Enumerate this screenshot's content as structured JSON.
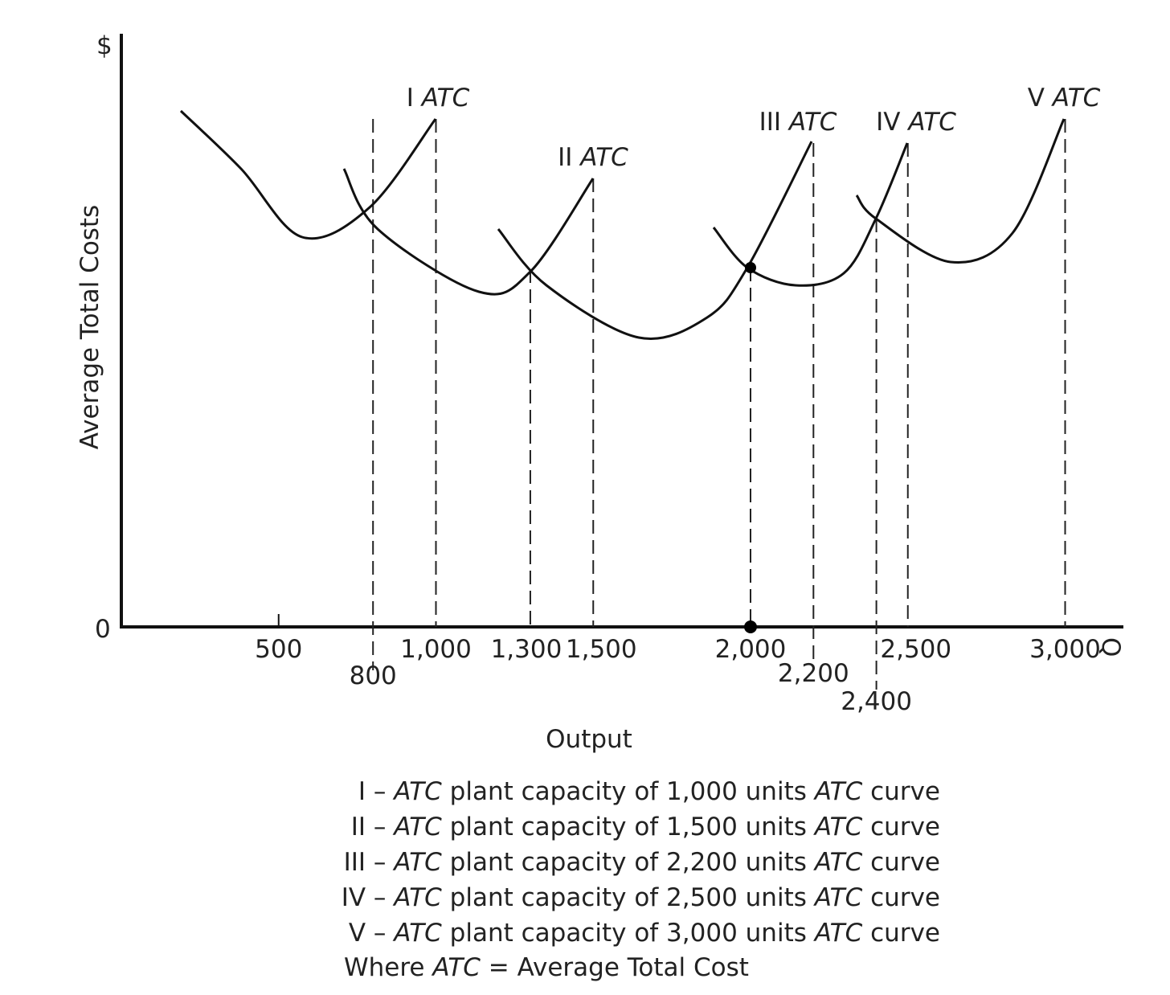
{
  "chart_data": {
    "type": "line",
    "y_axis_symbol": "$",
    "x_axis_symbol": "Q",
    "origin_label": "0",
    "xlabel": "Output",
    "ylabel": "Average Total Costs",
    "xlim": [
      0,
      3000
    ],
    "x_ticks": [
      "500",
      "800",
      "1,000",
      "1,300",
      "1,500",
      "2,000",
      "2,200",
      "2,400",
      "2,500",
      "3,000"
    ],
    "x_tick_values": [
      500,
      800,
      1000,
      1300,
      1500,
      2000,
      2200,
      2400,
      2500,
      3000
    ],
    "dashed_reference_lines_at": [
      800,
      1000,
      1300,
      1500,
      2000,
      2200,
      2400,
      2500,
      3000
    ],
    "highlighted_point_x": 2000,
    "series": [
      {
        "name": "I ATC",
        "numeral": "I",
        "capacity": 1000,
        "x_range": [
          190,
          1000
        ],
        "min_x": 575
      },
      {
        "name": "II ATC",
        "numeral": "II",
        "capacity": 1500,
        "x_range": [
          710,
          1500
        ],
        "min_x": 1140
      },
      {
        "name": "III ATC",
        "numeral": "III",
        "capacity": 2200,
        "x_range": [
          1200,
          2200
        ],
        "min_x": 1660
      },
      {
        "name": "IV ATC",
        "numeral": "IV",
        "capacity": 2500,
        "x_range": [
          1890,
          2500
        ],
        "min_x": 2150
      },
      {
        "name": "V ATC",
        "numeral": "V",
        "capacity": 3000,
        "x_range": [
          2350,
          3000
        ],
        "min_x": 2665
      }
    ],
    "legend": [
      {
        "prefix": "I – ",
        "atc": "ATC",
        "middle": " plant capacity of 1,000 units ",
        "atc2": "ATC",
        "suffix": " curve"
      },
      {
        "prefix": "II – ",
        "atc": "ATC",
        "middle": " plant capacity of 1,500 units ",
        "atc2": "ATC",
        "suffix": " curve"
      },
      {
        "prefix": "III – ",
        "atc": "ATC",
        "middle": " plant capacity of 2,200 units ",
        "atc2": "ATC",
        "suffix": " curve"
      },
      {
        "prefix": "IV – ",
        "atc": "ATC",
        "middle": " plant capacity of 2,500 units ",
        "atc2": "ATC",
        "suffix": " curve"
      },
      {
        "prefix": "V – ",
        "atc": "ATC",
        "middle": " plant capacity of 3,000 units ",
        "atc2": "ATC",
        "suffix": " curve"
      }
    ],
    "note": {
      "prefix": "Where ",
      "atc": "ATC",
      "suffix": " = Average Total Cost"
    }
  }
}
